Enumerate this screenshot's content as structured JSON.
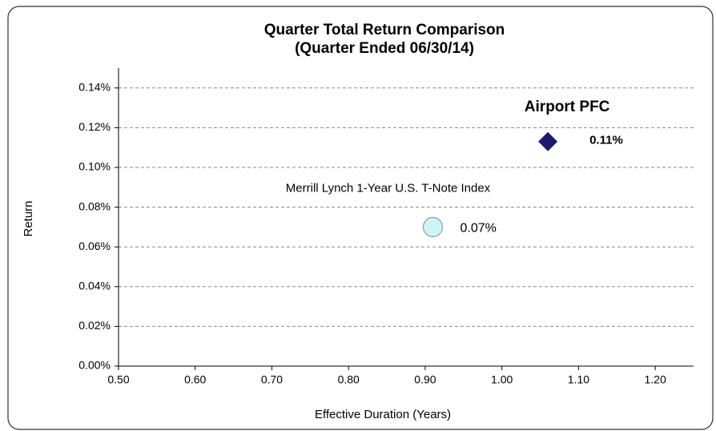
{
  "chart_data": {
    "type": "scatter",
    "title": "Quarter Total Return Comparison",
    "subtitle": "(Quarter Ended 06/30/14)",
    "x_label": "Effective Duration (Years)",
    "y_label": "Return",
    "xlim": [
      0.5,
      1.25
    ],
    "xticks": [
      {
        "value": 0.5,
        "label": "0.50"
      },
      {
        "value": 0.6,
        "label": "0.60"
      },
      {
        "value": 0.7,
        "label": "0.70"
      },
      {
        "value": 0.8,
        "label": "0.80"
      },
      {
        "value": 0.9,
        "label": "0.90"
      },
      {
        "value": 1.0,
        "label": "1.00"
      },
      {
        "value": 1.1,
        "label": "1.10"
      },
      {
        "value": 1.2,
        "label": "1.20"
      }
    ],
    "ylim": [
      0,
      0.15
    ],
    "yticks": [
      {
        "value": 0,
        "label": "0.00%"
      },
      {
        "value": 0.02,
        "label": "0.02%"
      },
      {
        "value": 0.04,
        "label": "0.04%"
      },
      {
        "value": 0.06,
        "label": "0.06%"
      },
      {
        "value": 0.08,
        "label": "0.08%"
      },
      {
        "value": 0.1,
        "label": "0.10%"
      },
      {
        "value": 0.12,
        "label": "0.12%"
      },
      {
        "value": 0.14,
        "label": "0.14%"
      }
    ],
    "grid": true,
    "series": [
      {
        "name": "Airport PFC",
        "color": "#1a1a6e",
        "marker": "diamond",
        "x": [
          1.06
        ],
        "values": [
          0.113
        ],
        "value_labels": [
          "0.11%"
        ]
      },
      {
        "name": "Merrill Lynch 1-Year U.S. T-Note Index",
        "color": "#ccf5f7",
        "marker": "circle",
        "x": [
          0.91
        ],
        "values": [
          0.07
        ],
        "value_labels": [
          "0.07%"
        ]
      }
    ]
  }
}
